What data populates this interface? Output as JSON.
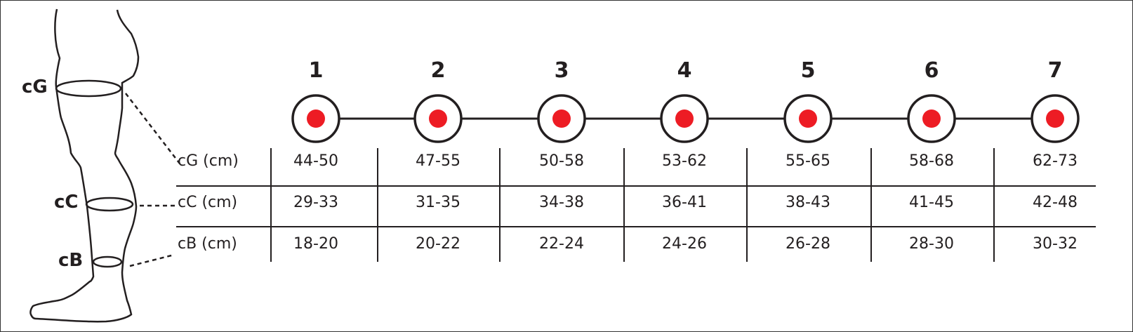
{
  "leg_labels": {
    "g": "cG",
    "c": "cC",
    "b": "cB"
  },
  "sizes": [
    "1",
    "2",
    "3",
    "4",
    "5",
    "6",
    "7"
  ],
  "rows": [
    {
      "label": "cG (cm)",
      "values": [
        "44-50",
        "47-55",
        "50-58",
        "53-62",
        "55-65",
        "58-68",
        "62-73"
      ]
    },
    {
      "label": "cC (cm)",
      "values": [
        "29-33",
        "31-35",
        "34-38",
        "36-41",
        "38-43",
        "41-45",
        "42-48"
      ]
    },
    {
      "label": "cB (cm)",
      "values": [
        "18-20",
        "20-22",
        "22-24",
        "24-26",
        "26-28",
        "28-30",
        "30-32"
      ]
    }
  ],
  "colors": {
    "marker": "#ed1c24",
    "line": "#231f20"
  }
}
